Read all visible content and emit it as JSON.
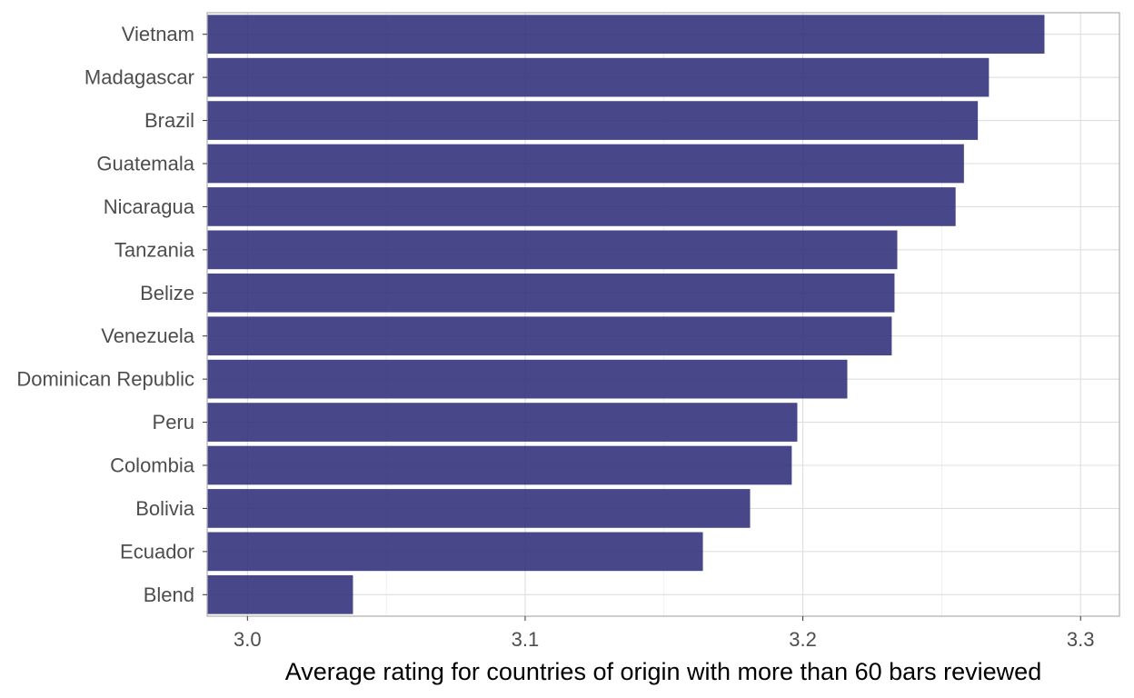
{
  "chart_data": {
    "type": "bar",
    "orientation": "horizontal",
    "categories": [
      "Vietnam",
      "Madagascar",
      "Brazil",
      "Guatemala",
      "Nicaragua",
      "Tanzania",
      "Belize",
      "Venezuela",
      "Dominican Republic",
      "Peru",
      "Colombia",
      "Bolivia",
      "Ecuador",
      "Blend"
    ],
    "values": [
      3.287,
      3.267,
      3.263,
      3.258,
      3.255,
      3.234,
      3.233,
      3.232,
      3.216,
      3.198,
      3.196,
      3.181,
      3.164,
      3.038
    ],
    "xlabel": "Average rating for countries of origin with more than 60 bars reviewed",
    "ylabel": "",
    "xlim": [
      2.9855,
      3.314
    ],
    "xticks": [
      3.0,
      3.1,
      3.2,
      3.3
    ],
    "xtick_labels": [
      "3.0",
      "3.1",
      "3.2",
      "3.3"
    ],
    "grid": true,
    "bar_color": "#2e2e7a",
    "bar_opacity": 0.88
  }
}
